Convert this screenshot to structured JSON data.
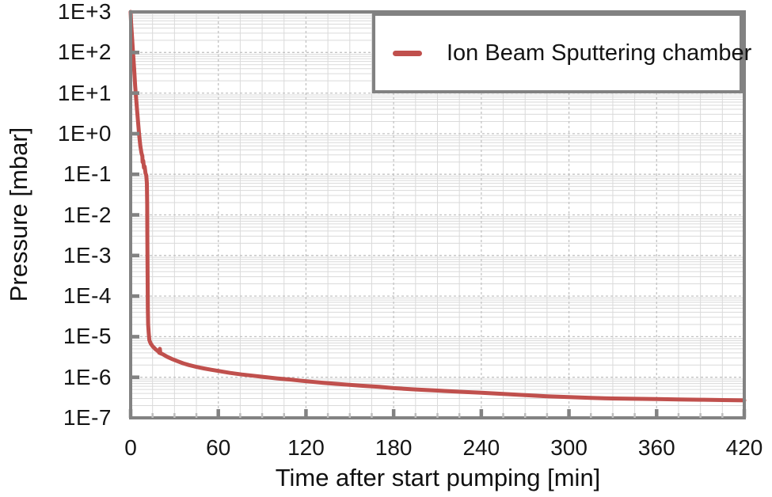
{
  "colors": {
    "series": "#c0504d",
    "axis": "#828282",
    "grid_minor": "#dadada",
    "grid_major": "#c3c3c3",
    "tick_minor": "#bdbdbd",
    "text": "#141414",
    "background": "#ffffff"
  },
  "legend": {
    "entries": [
      {
        "label": "Ion Beam Sputtering chamber",
        "color": "#c0504d"
      }
    ],
    "position": "top-right"
  },
  "chart_data": {
    "type": "line",
    "title": "",
    "xlabel": "Time after start pumping [min]",
    "ylabel": "Pressure [mbar]",
    "x_range": [
      0,
      420
    ],
    "x_ticks": [
      0,
      60,
      120,
      180,
      240,
      300,
      360,
      420
    ],
    "x_minor_step": 15,
    "y_scale": "log",
    "y_exponent_range": [
      3,
      -7
    ],
    "y_tick_labels": [
      "1E+3",
      "1E+2",
      "1E+1",
      "1E+0",
      "1E-1",
      "1E-2",
      "1E-3",
      "1E-4",
      "1E-5",
      "1E-6",
      "1E-7"
    ],
    "grid": {
      "major_dashed": true,
      "minor_solid": true
    },
    "legend_position": "top-right",
    "series": [
      {
        "name": "Ion Beam Sputtering chamber",
        "color": "#c0504d",
        "points": [
          [
            0,
            1000
          ],
          [
            0.3,
            530
          ],
          [
            1.0,
            230
          ],
          [
            1.6,
            100
          ],
          [
            2.4,
            40
          ],
          [
            3.1,
            15
          ],
          [
            3.6,
            9
          ],
          [
            4.4,
            3.8
          ],
          [
            5.1,
            1.9
          ],
          [
            5.8,
            0.95
          ],
          [
            6.6,
            0.5
          ],
          [
            7.4,
            0.33
          ],
          [
            8.0,
            0.28
          ],
          [
            8.2,
            0.2
          ],
          [
            8.6,
            0.215
          ],
          [
            9.1,
            0.145
          ],
          [
            9.6,
            0.155
          ],
          [
            10.2,
            0.105
          ],
          [
            10.7,
            0.095
          ],
          [
            11.1,
            0.06
          ],
          [
            11.3,
            0.018
          ],
          [
            11.45,
            0.0025
          ],
          [
            11.6,
            0.00035
          ],
          [
            11.78,
            5e-05
          ],
          [
            12.0,
            2e-05
          ],
          [
            12.35,
            1.25e-05
          ],
          [
            12.8,
            8.3e-06
          ],
          [
            13.6,
            6.9e-06
          ],
          [
            15,
            5.8e-06
          ],
          [
            17,
            4.9e-06
          ],
          [
            19,
            4.3e-06
          ],
          [
            19.6,
            4e-06
          ],
          [
            20.0,
            5e-06
          ],
          [
            20.4,
            3.9e-06
          ],
          [
            22,
            3.7e-06
          ],
          [
            25,
            3.2e-06
          ],
          [
            28,
            2.85e-06
          ],
          [
            32,
            2.5e-06
          ],
          [
            36,
            2.2e-06
          ],
          [
            40,
            2e-06
          ],
          [
            45,
            1.8e-06
          ],
          [
            50,
            1.65e-06
          ],
          [
            55,
            1.53e-06
          ],
          [
            60,
            1.43e-06
          ],
          [
            68,
            1.28e-06
          ],
          [
            76,
            1.17e-06
          ],
          [
            84,
            1.09e-06
          ],
          [
            92,
            1.01e-06
          ],
          [
            100,
            9.4e-07
          ],
          [
            110,
            8.7e-07
          ],
          [
            120,
            8e-07
          ],
          [
            132,
            7.3e-07
          ],
          [
            145,
            6.7e-07
          ],
          [
            158,
            6.2e-07
          ],
          [
            170,
            5.8e-07
          ],
          [
            180,
            5.4e-07
          ],
          [
            195,
            5e-07
          ],
          [
            210,
            4.7e-07
          ],
          [
            225,
            4.4e-07
          ],
          [
            240,
            4.15e-07
          ],
          [
            255,
            3.9e-07
          ],
          [
            270,
            3.65e-07
          ],
          [
            285,
            3.4e-07
          ],
          [
            300,
            3.25e-07
          ],
          [
            315,
            3.1e-07
          ],
          [
            330,
            3e-07
          ],
          [
            345,
            2.95e-07
          ],
          [
            360,
            2.9e-07
          ],
          [
            375,
            2.85e-07
          ],
          [
            390,
            2.8e-07
          ],
          [
            405,
            2.75e-07
          ],
          [
            420,
            2.7e-07
          ]
        ]
      }
    ]
  }
}
